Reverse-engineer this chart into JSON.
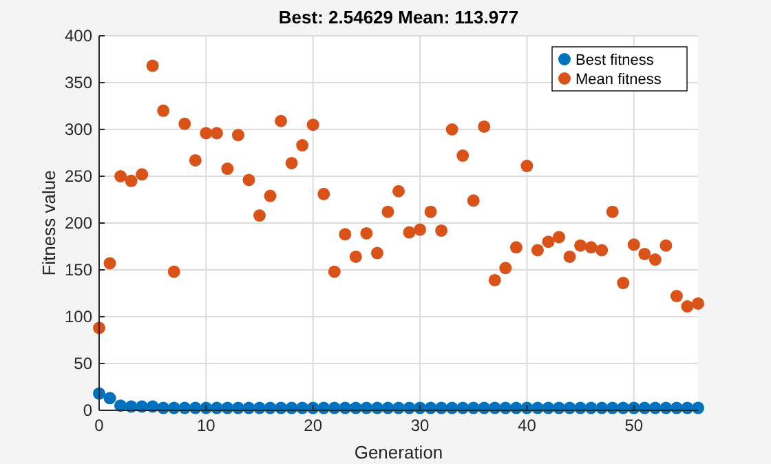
{
  "chart_data": {
    "type": "scatter",
    "title": "Best: 2.54629 Mean: 113.977",
    "xlabel": "Generation",
    "ylabel": "Fitness value",
    "x": [
      0,
      1,
      2,
      3,
      4,
      5,
      6,
      7,
      8,
      9,
      10,
      11,
      12,
      13,
      14,
      15,
      16,
      17,
      18,
      19,
      20,
      21,
      22,
      23,
      24,
      25,
      26,
      27,
      28,
      29,
      30,
      31,
      32,
      33,
      34,
      35,
      36,
      37,
      38,
      39,
      40,
      41,
      42,
      43,
      44,
      45,
      46,
      47,
      48,
      49,
      50,
      51,
      52,
      53,
      54,
      55,
      56
    ],
    "series": [
      {
        "name": "Best fitness",
        "color": "#0072bd",
        "values": [
          18,
          13,
          5,
          4,
          4,
          4,
          2.5,
          2.5,
          2.5,
          2.5,
          2.5,
          2.5,
          2.5,
          2.5,
          2.5,
          2.5,
          2.5,
          2.5,
          2.5,
          2.5,
          2.5,
          2.5,
          2.5,
          2.5,
          2.5,
          2.5,
          2.5,
          2.5,
          2.5,
          2.5,
          2.5,
          2.5,
          2.5,
          2.5,
          2.5,
          2.5,
          2.5,
          2.5,
          2.5,
          2.5,
          2.5,
          2.5,
          2.5,
          2.5,
          2.5,
          2.5,
          2.5,
          2.5,
          2.5,
          2.5,
          2.5,
          2.5,
          2.5,
          2.5,
          2.5,
          2.5,
          2.5
        ]
      },
      {
        "name": "Mean fitness",
        "color": "#d95319",
        "values": [
          88,
          157,
          250,
          245,
          252,
          368,
          320,
          148,
          306,
          267,
          296,
          296,
          258,
          294,
          246,
          208,
          229,
          309,
          264,
          283,
          305,
          231,
          148,
          188,
          164,
          189,
          168,
          212,
          234,
          190,
          193,
          212,
          192,
          300,
          272,
          224,
          303,
          139,
          152,
          174,
          261,
          171,
          180,
          185,
          164,
          176,
          174,
          171,
          212,
          136,
          177,
          167,
          161,
          176,
          122,
          111,
          114
        ]
      }
    ],
    "xlim": [
      0,
      56
    ],
    "xticks": [
      0,
      10,
      20,
      30,
      40,
      50
    ],
    "ylim": [
      0,
      400
    ],
    "yticks": [
      0,
      50,
      100,
      150,
      200,
      250,
      300,
      350,
      400
    ],
    "grid": true,
    "legend": "top right",
    "marker": "circle"
  }
}
